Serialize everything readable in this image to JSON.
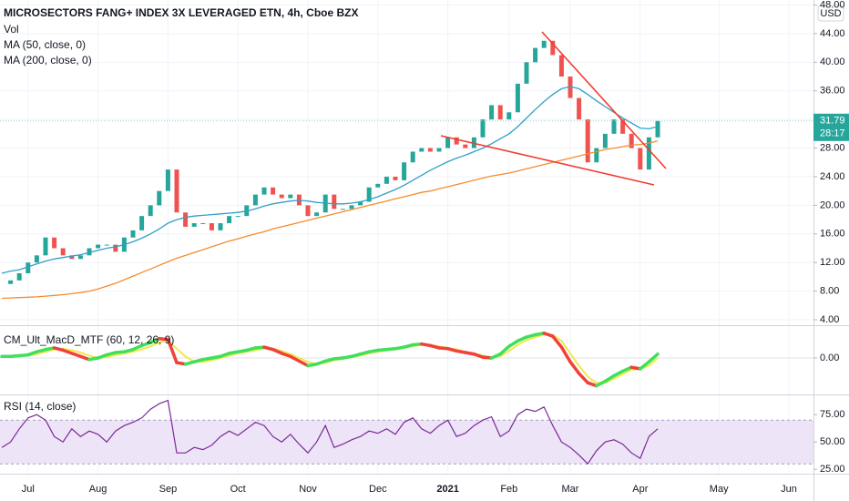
{
  "chart_data": [
    {
      "type": "candlestick",
      "title": "MICROSECTORS FANG+ INDEX 3X LEVERAGED ETN, 4h, Cboe BZX",
      "volume_label": "Vol",
      "currency": "USD",
      "up_color": "#26a69a",
      "down_color": "#ef5350",
      "values": [
        9,
        9.5,
        10.5,
        12,
        13,
        15.5,
        14,
        13,
        12.5,
        13,
        14,
        14.5,
        14.5,
        13.5,
        15.5,
        16.5,
        18.5,
        20,
        22,
        25,
        19,
        17,
        17.5,
        17.5,
        16.5,
        17.5,
        18.5,
        18.5,
        20,
        21.5,
        22.5,
        21.5,
        21,
        21.5,
        20,
        18.5,
        19,
        21.5,
        19.5,
        19.5,
        20,
        20.5,
        22.5,
        23,
        24,
        23.5,
        26,
        27.5,
        28,
        27.5,
        28,
        29.5,
        28.5,
        28,
        29.5,
        32,
        34,
        32,
        33,
        37,
        40,
        42,
        43,
        41,
        38,
        35,
        32,
        26,
        28,
        30,
        32,
        30,
        28,
        25,
        29.5,
        31.8,
        null,
        null,
        null,
        null,
        null,
        null,
        null,
        null,
        null,
        null,
        null,
        null,
        null,
        null,
        null
      ],
      "series": [
        {
          "name": "MA (50, close, 0)",
          "color": "#2fa0c8",
          "values": [
            10.5,
            10.8,
            11,
            11.4,
            11.8,
            12.2,
            12.5,
            12.7,
            12.9,
            13.1,
            13.4,
            13.7,
            14,
            14.2,
            14.5,
            14.9,
            15.4,
            16,
            16.7,
            17.5,
            18,
            18.3,
            18.5,
            18.6,
            18.7,
            18.8,
            18.9,
            19,
            19.2,
            19.5,
            19.9,
            20.2,
            20.4,
            20.6,
            20.7,
            20.6,
            20.4,
            20.3,
            20.2,
            20.2,
            20.3,
            20.5,
            20.8,
            21.2,
            21.7,
            22.2,
            22.8,
            23.5,
            24.2,
            24.9,
            25.5,
            26.1,
            26.6,
            27,
            27.5,
            28,
            28.6,
            29.3,
            30,
            31,
            32.2,
            33.4,
            34.5,
            35.5,
            36.3,
            36.6,
            36.3,
            35.5,
            34.6,
            33.8,
            33,
            32.2,
            31.5,
            30.8,
            30.7,
            31,
            null,
            null,
            null,
            null,
            null,
            null,
            null,
            null,
            null,
            null,
            null,
            null,
            null,
            null,
            null
          ]
        },
        {
          "name": "MA (200, close, 0)",
          "color": "#f68b2c",
          "values": [
            7,
            7.05,
            7.1,
            7.15,
            7.2,
            7.3,
            7.4,
            7.5,
            7.65,
            7.8,
            8,
            8.3,
            8.7,
            9.1,
            9.6,
            10.1,
            10.6,
            11.1,
            11.6,
            12.1,
            12.6,
            13,
            13.4,
            13.8,
            14.2,
            14.6,
            15,
            15.3,
            15.7,
            16,
            16.3,
            16.7,
            17,
            17.3,
            17.6,
            17.9,
            18.2,
            18.5,
            18.8,
            19.1,
            19.4,
            19.7,
            20,
            20.3,
            20.6,
            20.9,
            21.2,
            21.5,
            21.8,
            22,
            22.3,
            22.6,
            22.9,
            23.2,
            23.5,
            23.8,
            24.1,
            24.3,
            24.5,
            24.8,
            25.1,
            25.4,
            25.7,
            26,
            26.3,
            26.6,
            26.9,
            27.2,
            27.5,
            27.8,
            28,
            28.2,
            28.4,
            28.5,
            28.7,
            29,
            null,
            null,
            null,
            null,
            null,
            null,
            null,
            null,
            null,
            null,
            null,
            null,
            null,
            null,
            null
          ]
        }
      ],
      "last": {
        "value": 31.79,
        "label": "31.79"
      },
      "countdown": "28:17",
      "ylim": [
        3.24,
        48.7
      ],
      "yticks": [
        {
          "value": 4,
          "label": "4.00"
        },
        {
          "value": 8,
          "label": "8.00"
        },
        {
          "value": 12,
          "label": "12.00"
        },
        {
          "value": 16,
          "label": "16.00"
        },
        {
          "value": 20,
          "label": "20.00"
        },
        {
          "value": 24,
          "label": "24.00"
        },
        {
          "value": 28,
          "label": "28.00"
        },
        {
          "value": 32,
          "label": "32.00"
        },
        {
          "value": 36,
          "label": "36.00"
        },
        {
          "value": 40,
          "label": "40.00"
        },
        {
          "value": 44,
          "label": "44.00"
        },
        {
          "value": 48,
          "label": "48.00"
        }
      ],
      "grid": true
    },
    {
      "type": "line",
      "title": "CM_Ult_MacD_MTF (60, 12, 26, 9)",
      "up_color": "#3ee05c",
      "down_color": "#f0413a",
      "signal_color": "#f2e84a",
      "values": [
        0.2,
        0.2,
        0.3,
        0.4,
        0.8,
        1.1,
        1.3,
        1,
        0.6,
        0.2,
        -0.2,
        0,
        0.4,
        0.7,
        0.8,
        1.1,
        1.6,
        2,
        2.5,
        2.4,
        -0.6,
        -0.8,
        -0.5,
        -0.2,
        0,
        0.2,
        0.6,
        0.8,
        1,
        1.3,
        1.4,
        1.1,
        0.6,
        0.2,
        -0.4,
        -1,
        -0.8,
        -0.4,
        -0.1,
        0,
        0.2,
        0.5,
        0.8,
        1,
        1.1,
        1.2,
        1.4,
        1.7,
        1.8,
        1.6,
        1.3,
        1.2,
        0.9,
        0.7,
        0.5,
        0.1,
        0,
        0.5,
        1.5,
        2.2,
        2.7,
        3,
        3.2,
        2.8,
        1.4,
        -0.5,
        -2,
        -3.2,
        -3.6,
        -3,
        -2.3,
        -1.7,
        -1.2,
        -1.4,
        -0.5,
        0.5,
        null,
        null,
        null,
        null,
        null,
        null,
        null,
        null,
        null,
        null,
        null,
        null,
        null,
        null,
        null
      ],
      "signal": [
        0.1,
        0.2,
        0.2,
        0.3,
        0.5,
        0.8,
        1.1,
        1.2,
        1,
        0.7,
        0.3,
        0,
        0.1,
        0.4,
        0.6,
        0.8,
        1.1,
        1.5,
        2,
        2.3,
        1.2,
        0.2,
        -0.5,
        -0.5,
        -0.3,
        0,
        0.3,
        0.6,
        0.8,
        1,
        1.2,
        1.2,
        0.9,
        0.5,
        0,
        -0.5,
        -0.8,
        -0.6,
        -0.3,
        -0.1,
        0.1,
        0.3,
        0.6,
        0.8,
        1,
        1.1,
        1.3,
        1.5,
        1.7,
        1.7,
        1.5,
        1.3,
        1.1,
        0.8,
        0.6,
        0.3,
        0.1,
        0.2,
        0.9,
        1.7,
        2.3,
        2.7,
        3,
        3,
        2.2,
        0.6,
        -1,
        -2.4,
        -3.2,
        -3.2,
        -2.7,
        -2.1,
        -1.5,
        -1.4,
        -1,
        0,
        null,
        null,
        null,
        null,
        null,
        null,
        null,
        null,
        null,
        null,
        null,
        null,
        null,
        null,
        null
      ],
      "ylim": [
        -4.59,
        3.88
      ],
      "yticks": [
        {
          "value": 0,
          "label": "0.00"
        }
      ]
    },
    {
      "type": "line",
      "title": "RSI (14, close)",
      "color": "#7b2a96",
      "band_color": "#ede4f7",
      "band": [
        30,
        70
      ],
      "values": [
        45,
        50,
        62,
        72,
        75,
        70,
        55,
        50,
        62,
        55,
        60,
        57,
        50,
        60,
        65,
        68,
        72,
        80,
        85,
        88,
        40,
        40,
        45,
        43,
        47,
        55,
        60,
        56,
        62,
        68,
        65,
        55,
        50,
        57,
        48,
        40,
        50,
        65,
        45,
        48,
        52,
        55,
        60,
        58,
        62,
        57,
        68,
        72,
        62,
        58,
        65,
        70,
        55,
        58,
        65,
        70,
        73,
        55,
        60,
        75,
        80,
        78,
        82,
        65,
        50,
        45,
        38,
        30,
        42,
        50,
        52,
        48,
        40,
        35,
        55,
        62,
        null,
        null,
        null,
        null,
        null,
        null,
        null,
        null,
        null,
        null,
        null,
        null,
        null,
        null,
        null
      ],
      "ylim": [
        21,
        91
      ],
      "yticks": [
        {
          "value": 25,
          "label": "25.00"
        },
        {
          "value": 50,
          "label": "50.00"
        },
        {
          "value": 75,
          "label": "75.00"
        }
      ],
      "categories": [
        null,
        null,
        null,
        "Jul",
        null,
        null,
        null,
        null,
        null,
        null,
        null,
        "Aug",
        null,
        null,
        null,
        null,
        null,
        null,
        null,
        "Sep",
        null,
        null,
        null,
        null,
        null,
        null,
        null,
        "Oct",
        null,
        null,
        null,
        null,
        null,
        null,
        null,
        "Nov",
        null,
        null,
        null,
        null,
        null,
        null,
        null,
        "Dec",
        null,
        null,
        null,
        null,
        null,
        null,
        null,
        "2021",
        null,
        null,
        null,
        null,
        null,
        null,
        "Feb",
        null,
        null,
        null,
        null,
        null,
        null,
        "Mar",
        null,
        null,
        null,
        null,
        null,
        null,
        null,
        "Apr",
        null,
        null,
        null,
        null,
        null,
        null,
        null,
        null,
        "May",
        null,
        null,
        null,
        null,
        null,
        null,
        null,
        "Jun"
      ]
    }
  ]
}
